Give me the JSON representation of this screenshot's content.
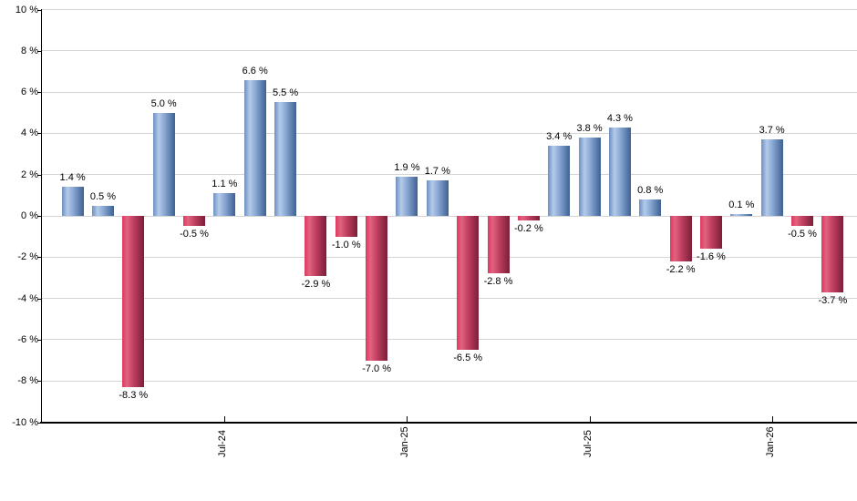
{
  "chart_data": {
    "type": "bar",
    "title": "",
    "xlabel": "",
    "ylabel": "",
    "unit": "%",
    "values": [
      1.4,
      0.5,
      -8.3,
      5.0,
      -0.5,
      1.1,
      6.6,
      5.5,
      -2.9,
      -1.0,
      -7.0,
      1.9,
      1.7,
      -6.5,
      -2.8,
      -0.2,
      3.4,
      3.8,
      4.3,
      0.8,
      -2.2,
      -1.6,
      0.1,
      3.7,
      -0.5,
      -3.7
    ],
    "bar_labels": [
      "1.4 %",
      "0.5 %",
      "-8.3 %",
      "5.0 %",
      "-0.5 %",
      "1.1 %",
      "6.6 %",
      "5.5 %",
      "-2.9 %",
      "-1.0 %",
      "-7.0 %",
      "1.9 %",
      "1.7 %",
      "-6.5 %",
      "-2.8 %",
      "-0.2 %",
      "3.4 %",
      "3.8 %",
      "4.3 %",
      "0.8 %",
      "-2.2 %",
      "-1.6 %",
      "0.1 %",
      "3.7 %",
      "-0.5 %",
      "-3.7 %"
    ],
    "x_ticks": [
      {
        "label": "Jul-24",
        "bar_index": 5
      },
      {
        "label": "Jan-25",
        "bar_index": 11
      },
      {
        "label": "Jul-25",
        "bar_index": 17
      },
      {
        "label": "Jan-26",
        "bar_index": 23
      }
    ],
    "y_ticks": [
      {
        "label": "10 %",
        "value": 10
      },
      {
        "label": "8 %",
        "value": 8
      },
      {
        "label": "6 %",
        "value": 6
      },
      {
        "label": "4 %",
        "value": 4
      },
      {
        "label": "2 %",
        "value": 2
      },
      {
        "label": "0 %",
        "value": 0
      },
      {
        "label": "-2 %",
        "value": -2
      },
      {
        "label": "-4 %",
        "value": -4
      },
      {
        "label": "-6 %",
        "value": -6
      },
      {
        "label": "-8 %",
        "value": -8
      },
      {
        "label": "-10 %",
        "value": -10
      }
    ],
    "ylim": [
      -10,
      10
    ],
    "y_step": 2,
    "grid": true,
    "legend_position": "none",
    "colors": {
      "background": "#ffffff",
      "gridline": "#d4d4d4",
      "axis": "#000000",
      "text": "#000000",
      "positive_bar_main": "#7b9bcc",
      "negative_bar_main": "#c23458",
      "positive_gradient_stops": [
        [
          0,
          "#6e8fc1"
        ],
        [
          25,
          "#b4cbea"
        ],
        [
          50,
          "#8caad5"
        ],
        [
          100,
          "#3e6093"
        ]
      ],
      "negative_gradient_stops": [
        [
          0,
          "#dc3960"
        ],
        [
          22,
          "#e2627f"
        ],
        [
          55,
          "#bc3c5e"
        ],
        [
          100,
          "#7a1f38"
        ]
      ]
    }
  }
}
